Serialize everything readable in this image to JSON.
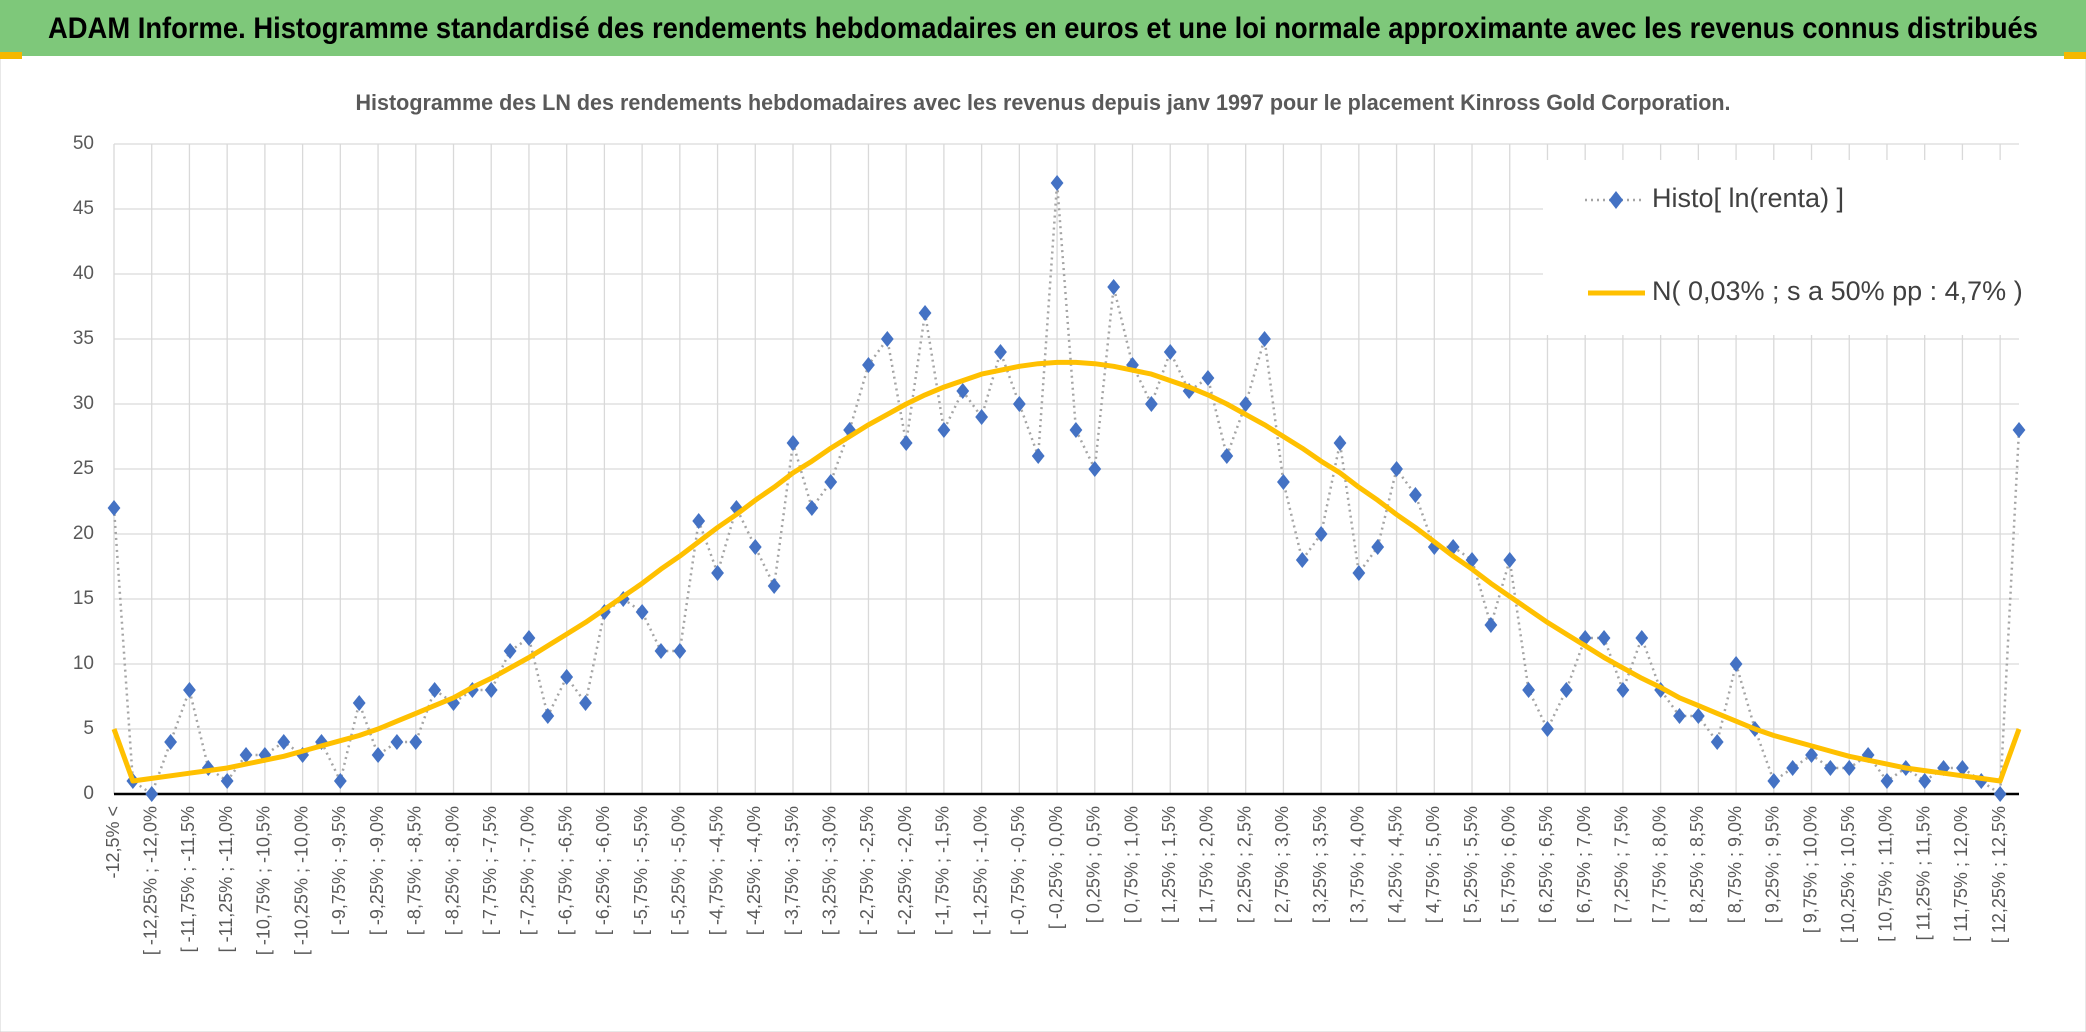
{
  "header": {
    "title": "ADAM Informe. Histogramme standardisé des rendements hebdomadaires en euros et une loi normale approximante avec les revenus connus distribués"
  },
  "chart_data": {
    "type": "line",
    "title": "Histogramme des LN des rendements hebdomadaires avec les revenus depuis janv 1997 pour le placement Kinross Gold Corporation.",
    "categories": [
      "-12,5% <",
      null,
      "[ -12,25% ; -12,0%",
      null,
      "[ -11,75% ; -11,5%",
      null,
      "[ -11,25% ; -11,0%",
      null,
      "[ -10,75% ; -10,5%",
      null,
      "[ -10,25% ; -10,0%",
      null,
      "[ -9,75% ; -9,5%",
      null,
      "[ -9,25% ; -9,0%",
      null,
      "[ -8,75% ; -8,5%",
      null,
      "[ -8,25% ; -8,0%",
      null,
      "[ -7,75% ; -7,5%",
      null,
      "[ -7,25% ; -7,0%",
      null,
      "[ -6,75% ; -6,5%",
      null,
      "[ -6,25% ; -6,0%",
      null,
      "[ -5,75% ; -5,5%",
      null,
      "[ -5,25% ; -5,0%",
      null,
      "[ -4,75% ; -4,5%",
      null,
      "[ -4,25% ; -4,0%",
      null,
      "[ -3,75% ; -3,5%",
      null,
      "[ -3,25% ; -3,0%",
      null,
      "[ -2,75% ; -2,5%",
      null,
      "[ -2,25% ; -2,0%",
      null,
      "[ -1,75% ; -1,5%",
      null,
      "[ -1,25% ; -1,0%",
      null,
      "[ -0,75% ; -0,5%",
      null,
      "[ -0,25% ; 0,0%",
      null,
      "[ 0,25% ; 0,5%",
      null,
      "[ 0,75% ; 1,0%",
      null,
      "[ 1,25% ; 1,5%",
      null,
      "[ 1,75% ; 2,0%",
      null,
      "[ 2,25% ; 2,5%",
      null,
      "[ 2,75% ; 3,0%",
      null,
      "[ 3,25% ; 3,5%",
      null,
      "[ 3,75% ; 4,0%",
      null,
      "[ 4,25% ; 4,5%",
      null,
      "[ 4,75% ; 5,0%",
      null,
      "[ 5,25% ; 5,5%",
      null,
      "[ 5,75% ; 6,0%",
      null,
      "[ 6,25% ; 6,5%",
      null,
      "[ 6,75% ; 7,0%",
      null,
      "[ 7,25% ; 7,5%",
      null,
      "[ 7,75% ; 8,0%",
      null,
      "[ 8,25% ; 8,5%",
      null,
      "[ 8,75% ; 9,0%",
      null,
      "[ 9,25% ; 9,5%",
      null,
      "[ 9,75% ; 10,0%",
      null,
      "[ 10,25% ; 10,5%",
      null,
      "[ 10,75% ; 11,0%",
      null,
      "[ 11,25% ; 11,5%",
      null,
      "[ 11,75% ; 12,0%",
      null,
      "[ 12,25% ; 12,5%",
      null
    ],
    "series": [
      {
        "name": "Histo[ ln(renta) ]",
        "color": "#4472c4",
        "line_color": "#a5a5a5",
        "values": [
          22,
          1,
          0,
          4,
          8,
          2,
          1,
          3,
          3,
          4,
          3,
          4,
          1,
          7,
          3,
          4,
          4,
          8,
          7,
          8,
          8,
          11,
          12,
          6,
          9,
          7,
          14,
          15,
          14,
          11,
          11,
          21,
          17,
          22,
          19,
          16,
          27,
          22,
          24,
          28,
          33,
          35,
          27,
          37,
          28,
          31,
          29,
          34,
          30,
          26,
          47,
          28,
          25,
          39,
          33,
          30,
          34,
          31,
          32,
          26,
          30,
          35,
          24,
          18,
          20,
          27,
          17,
          19,
          25,
          23,
          19,
          19,
          18,
          13,
          18,
          8,
          5,
          8,
          12,
          12,
          8,
          12,
          8,
          6,
          6,
          4,
          10,
          5,
          1,
          2,
          3,
          2,
          2,
          3,
          1,
          2,
          1,
          2,
          2,
          1,
          0,
          28
        ]
      },
      {
        "name": "N( 0,03% ; s a 50% pp : 4,7% )",
        "color": "#ffc000",
        "values": [
          5,
          1.0,
          1.2,
          1.4,
          1.6,
          1.8,
          2.0,
          2.3,
          2.6,
          2.9,
          3.3,
          3.7,
          4.1,
          4.5,
          5.0,
          5.6,
          6.2,
          6.8,
          7.4,
          8.2,
          8.9,
          9.7,
          10.5,
          11.4,
          12.3,
          13.2,
          14.2,
          15.2,
          16.2,
          17.3,
          18.3,
          19.4,
          20.5,
          21.5,
          22.6,
          23.6,
          24.7,
          25.6,
          26.6,
          27.5,
          28.4,
          29.2,
          30.0,
          30.7,
          31.3,
          31.8,
          32.3,
          32.6,
          32.9,
          33.1,
          33.2,
          33.2,
          33.1,
          32.9,
          32.6,
          32.3,
          31.8,
          31.3,
          30.7,
          30.0,
          29.2,
          28.4,
          27.5,
          26.6,
          25.6,
          24.7,
          23.6,
          22.6,
          21.5,
          20.5,
          19.4,
          18.3,
          17.3,
          16.2,
          15.2,
          14.2,
          13.2,
          12.3,
          11.4,
          10.5,
          9.7,
          8.9,
          8.2,
          7.4,
          6.8,
          6.2,
          5.6,
          5.0,
          4.5,
          4.1,
          3.7,
          3.3,
          2.9,
          2.6,
          2.3,
          2.0,
          1.8,
          1.6,
          1.4,
          1.2,
          1.0,
          5
        ]
      }
    ],
    "ylim": [
      0,
      50
    ],
    "yticks": [
      0,
      5,
      10,
      15,
      20,
      25,
      30,
      35,
      40,
      45,
      50
    ],
    "grid": true,
    "legend": "upper right"
  }
}
